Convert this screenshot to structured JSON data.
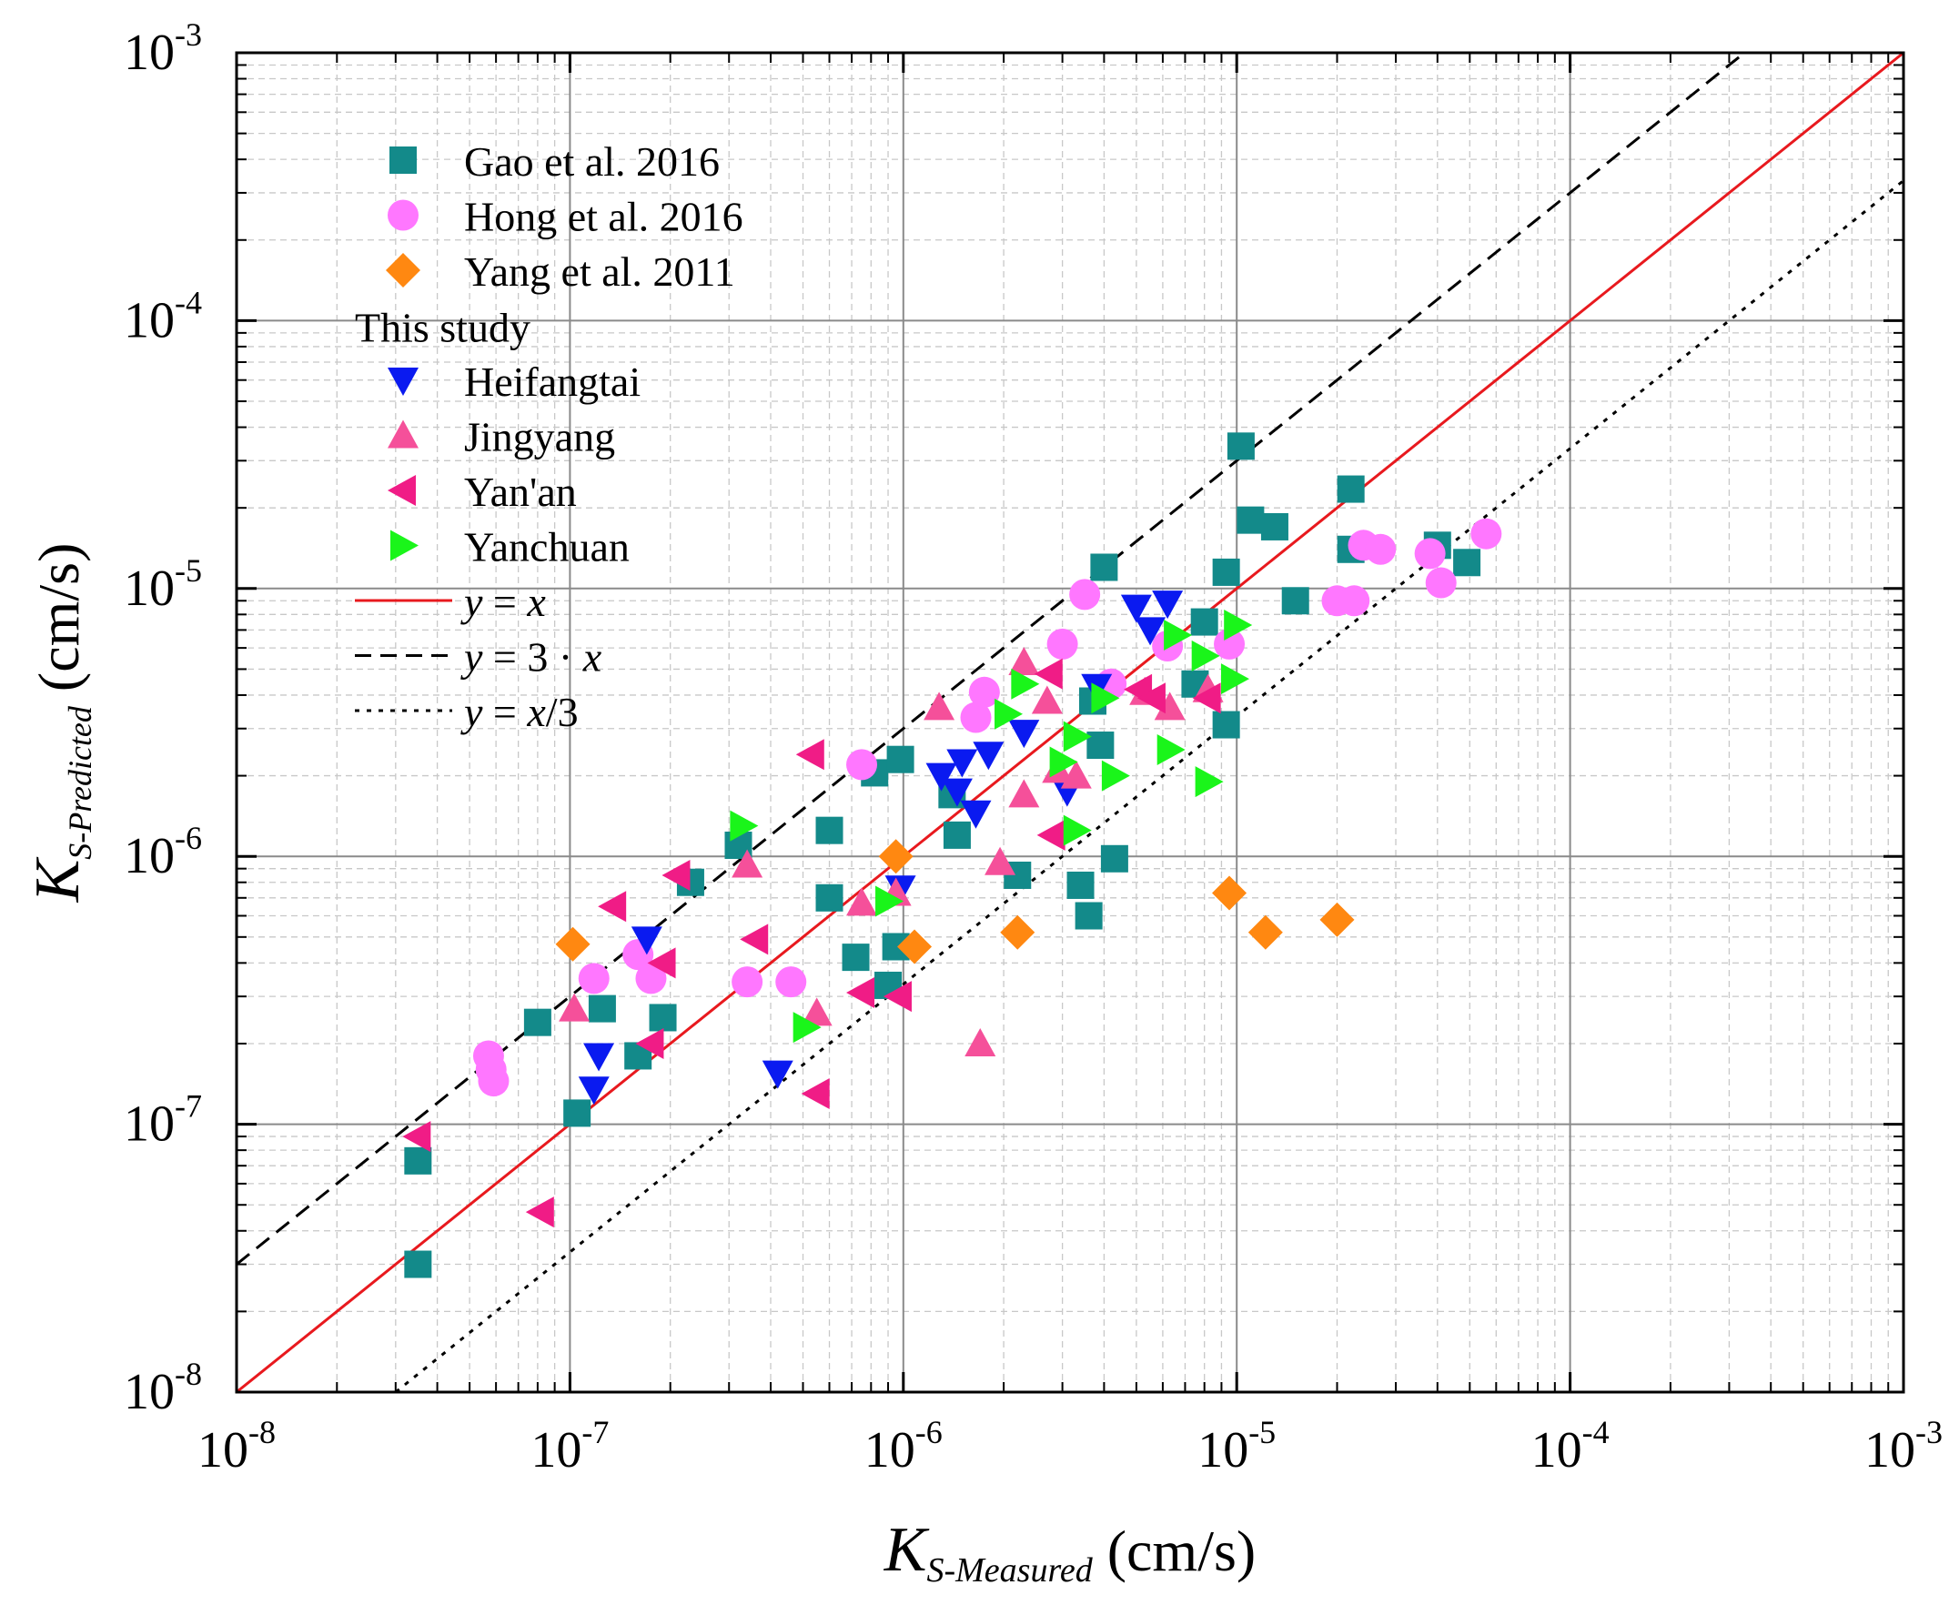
{
  "chart_data": {
    "type": "scatter",
    "title": "",
    "scale": "log-log",
    "xlim": [
      1e-08,
      0.001
    ],
    "ylim": [
      1e-08,
      0.001
    ],
    "grid": true,
    "legend_position": "top-left",
    "xlabel": {
      "main": "K",
      "sub": "S-Measured",
      "unit": "(cm/s)"
    },
    "ylabel": {
      "main": "K",
      "sub": "S-Predicted",
      "unit": "(cm/s)"
    },
    "ticks": [
      {
        "value": 1e-08,
        "base": "10",
        "exp": "-8"
      },
      {
        "value": 1e-07,
        "base": "10",
        "exp": "-7"
      },
      {
        "value": 1e-06,
        "base": "10",
        "exp": "-6"
      },
      {
        "value": 1e-05,
        "base": "10",
        "exp": "-5"
      },
      {
        "value": 0.0001,
        "base": "10",
        "exp": "-4"
      },
      {
        "value": 0.001,
        "base": "10",
        "exp": "-3"
      }
    ],
    "legend_group_title": "This study",
    "series": [
      {
        "name": "Gao et al. 2016",
        "marker": "square",
        "color": "#138A8A",
        "points": [
          [
            3.5e-08,
            3e-08
          ],
          [
            3.5e-08,
            7.3e-08
          ],
          [
            8e-08,
            2.4e-07
          ],
          [
            1.05e-07,
            1.1e-07
          ],
          [
            1.25e-07,
            2.7e-07
          ],
          [
            1.6e-07,
            1.8e-07
          ],
          [
            1.9e-07,
            2.5e-07
          ],
          [
            2.3e-07,
            8e-07
          ],
          [
            3.2e-07,
            1.1e-06
          ],
          [
            6e-07,
            1.25e-06
          ],
          [
            6e-07,
            7e-07
          ],
          [
            7.2e-07,
            4.2e-07
          ],
          [
            8.2e-07,
            2.05e-06
          ],
          [
            9e-07,
            3.3e-07
          ],
          [
            9.5e-07,
            4.6e-07
          ],
          [
            9.8e-07,
            2.3e-06
          ],
          [
            1.4e-06,
            1.7e-06
          ],
          [
            1.45e-06,
            1.2e-06
          ],
          [
            2.2e-06,
            8.5e-07
          ],
          [
            3.4e-06,
            7.8e-07
          ],
          [
            3.6e-06,
            6e-07
          ],
          [
            3.7e-06,
            3.8e-06
          ],
          [
            3.9e-06,
            2.6e-06
          ],
          [
            4.3e-06,
            9.8e-07
          ],
          [
            4e-06,
            1.2e-05
          ],
          [
            7.5e-06,
            4.4e-06
          ],
          [
            8e-06,
            7.5e-06
          ],
          [
            9.3e-06,
            3.1e-06
          ],
          [
            9.3e-06,
            1.15e-05
          ],
          [
            1.03e-05,
            3.4e-05
          ],
          [
            1.1e-05,
            1.8e-05
          ],
          [
            1.3e-05,
            1.7e-05
          ],
          [
            1.5e-05,
            9e-06
          ],
          [
            2.2e-05,
            2.35e-05
          ],
          [
            2.2e-05,
            1.4e-05
          ],
          [
            4e-05,
            1.45e-05
          ],
          [
            4.9e-05,
            1.25e-05
          ]
        ]
      },
      {
        "name": "Hong et al. 2016",
        "marker": "circle",
        "color": "#FF77FF",
        "points": [
          [
            5.7e-08,
            1.8e-07
          ],
          [
            5.8e-08,
            1.6e-07
          ],
          [
            5.9e-08,
            1.45e-07
          ],
          [
            1.18e-07,
            3.5e-07
          ],
          [
            1.6e-07,
            4.3e-07
          ],
          [
            1.75e-07,
            3.5e-07
          ],
          [
            3.4e-07,
            3.4e-07
          ],
          [
            4.6e-07,
            3.4e-07
          ],
          [
            7.5e-07,
            2.2e-06
          ],
          [
            1.65e-06,
            3.3e-06
          ],
          [
            1.75e-06,
            4.1e-06
          ],
          [
            3e-06,
            6.2e-06
          ],
          [
            3.5e-06,
            9.5e-06
          ],
          [
            4.2e-06,
            4.4e-06
          ],
          [
            6.2e-06,
            6.1e-06
          ],
          [
            9.5e-06,
            6.2e-06
          ],
          [
            2e-05,
            9e-06
          ],
          [
            2.25e-05,
            9e-06
          ],
          [
            2.4e-05,
            1.45e-05
          ],
          [
            2.7e-05,
            1.4e-05
          ],
          [
            3.8e-05,
            1.35e-05
          ],
          [
            4.1e-05,
            1.05e-05
          ],
          [
            5.6e-05,
            1.6e-05
          ]
        ]
      },
      {
        "name": "Yang et al. 2011",
        "marker": "diamond",
        "color": "#FF8811",
        "points": [
          [
            1.02e-07,
            4.7e-07
          ],
          [
            9.5e-07,
            1e-06
          ],
          [
            1.08e-06,
            4.6e-07
          ],
          [
            2.2e-06,
            5.2e-07
          ],
          [
            9.5e-06,
            7.3e-07
          ],
          [
            1.22e-05,
            5.2e-07
          ],
          [
            2e-05,
            5.8e-07
          ]
        ]
      },
      {
        "name": "Heifangtai",
        "marker": "triangle-down",
        "color": "#0A1AF0",
        "points": [
          [
            1.18e-07,
            1.35e-07
          ],
          [
            1.22e-07,
            1.8e-07
          ],
          [
            1.7e-07,
            4.9e-07
          ],
          [
            4.2e-07,
            1.55e-07
          ],
          [
            9.8e-07,
            7.6e-07
          ],
          [
            1.3e-06,
            2e-06
          ],
          [
            1.45e-06,
            1.75e-06
          ],
          [
            1.5e-06,
            2.25e-06
          ],
          [
            1.65e-06,
            1.45e-06
          ],
          [
            1.8e-06,
            2.4e-06
          ],
          [
            2.3e-06,
            2.9e-06
          ],
          [
            3.1e-06,
            1.75e-06
          ],
          [
            3.8e-06,
            4.3e-06
          ],
          [
            5e-06,
            8.5e-06
          ],
          [
            5.5e-06,
            7e-06
          ],
          [
            6.2e-06,
            8.8e-06
          ]
        ]
      },
      {
        "name": "Jingyang",
        "marker": "triangle-up",
        "color": "#F5509A",
        "points": [
          [
            1.03e-07,
            2.7e-07
          ],
          [
            3.4e-07,
            9.3e-07
          ],
          [
            5.5e-07,
            2.6e-07
          ],
          [
            7.5e-07,
            6.7e-07
          ],
          [
            9.5e-07,
            7.3e-07
          ],
          [
            1.28e-06,
            3.6e-06
          ],
          [
            1.7e-06,
            2e-07
          ],
          [
            1.95e-06,
            9.5e-07
          ],
          [
            2.3e-06,
            1.7e-06
          ],
          [
            2.3e-06,
            5.3e-06
          ],
          [
            2.7e-06,
            3.8e-06
          ],
          [
            2.9e-06,
            2.1e-06
          ],
          [
            3.3e-06,
            2e-06
          ],
          [
            5.3e-06,
            4.1e-06
          ],
          [
            6.3e-06,
            3.6e-06
          ],
          [
            8.2e-06,
            4.2e-06
          ]
        ]
      },
      {
        "name": "Yan'an",
        "marker": "triangle-left",
        "color": "#F01C86",
        "points": [
          [
            3.5e-08,
            9e-08
          ],
          [
            8.2e-08,
            4.7e-08
          ],
          [
            1.35e-07,
            6.5e-07
          ],
          [
            1.75e-07,
            2e-07
          ],
          [
            1.9e-07,
            4e-07
          ],
          [
            2.1e-07,
            8.5e-07
          ],
          [
            3.6e-07,
            4.9e-07
          ],
          [
            5.3e-07,
            2.4e-06
          ],
          [
            5.5e-07,
            1.3e-07
          ],
          [
            7.5e-07,
            3.1e-07
          ],
          [
            9.7e-07,
            3e-07
          ],
          [
            2.75e-06,
            4.8e-06
          ],
          [
            2.8e-06,
            1.2e-06
          ],
          [
            5.1e-06,
            4.2e-06
          ],
          [
            5.6e-06,
            3.9e-06
          ],
          [
            8.2e-06,
            3.9e-06
          ]
        ]
      },
      {
        "name": "Yanchuan",
        "marker": "triangle-right",
        "color": "#1AF51A",
        "points": [
          [
            3.3e-07,
            1.3e-06
          ],
          [
            5.1e-07,
            2.3e-07
          ],
          [
            9e-07,
            6.8e-07
          ],
          [
            2.05e-06,
            3.4e-06
          ],
          [
            2.3e-06,
            4.4e-06
          ],
          [
            3e-06,
            2.25e-06
          ],
          [
            3.3e-06,
            2.8e-06
          ],
          [
            3.3e-06,
            1.25e-06
          ],
          [
            4e-06,
            3.9e-06
          ],
          [
            4.3e-06,
            2e-06
          ],
          [
            6.3e-06,
            2.5e-06
          ],
          [
            6.6e-06,
            6.7e-06
          ],
          [
            8e-06,
            5.6e-06
          ],
          [
            8.2e-06,
            1.9e-06
          ],
          [
            9.8e-06,
            4.6e-06
          ],
          [
            1e-05,
            7.3e-06
          ]
        ]
      }
    ],
    "reference_lines": [
      {
        "name": "y = x",
        "label_parts": [
          "y",
          " = ",
          "x"
        ],
        "factor": 1,
        "color": "#E8191E",
        "dash": "solid"
      },
      {
        "name": "y = 3 · x",
        "label_parts": [
          "y",
          " = 3 · ",
          "x"
        ],
        "factor": 3,
        "color": "#000000",
        "dash": "dashed"
      },
      {
        "name": "y = x/3",
        "label_parts": [
          "y",
          " = ",
          "x",
          "/3"
        ],
        "factor": 0.3333333,
        "color": "#000000",
        "dash": "dotted"
      }
    ]
  }
}
